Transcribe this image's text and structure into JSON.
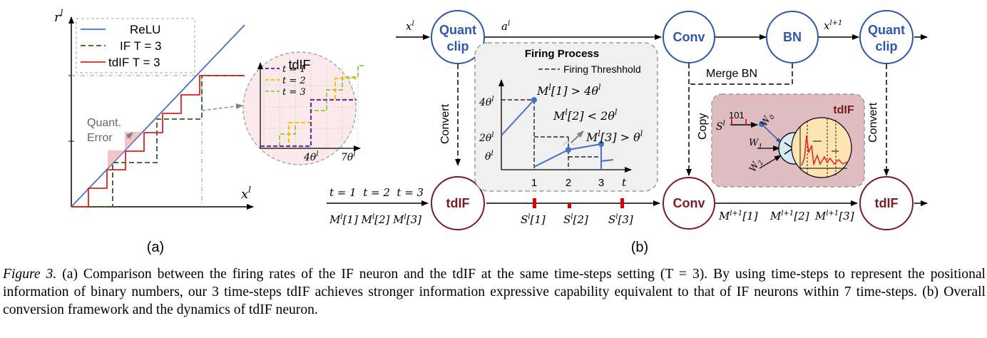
{
  "panel_a": {
    "ylabel": "r",
    "ylabel_sup": "l",
    "xlabel": "x",
    "xlabel_sup": "l",
    "legend": {
      "relu": "ReLU",
      "if": "IF T = 3",
      "tdif": "tdIF T = 3"
    },
    "quant_error": [
      "Quant.",
      "Error"
    ],
    "inset": {
      "title": "tdIF",
      "legend": [
        "t = 1",
        "t = 2",
        "t = 3"
      ],
      "xtick1": "4θ",
      "xtick1_sup": "l",
      "xtick2": "7θ",
      "xtick2_sup": "l"
    },
    "label": "(a)"
  },
  "panel_b": {
    "quant_clip_1": [
      "Quant",
      "clip"
    ],
    "quant_clip_2": [
      "Quant",
      "clip"
    ],
    "conv_top": "Conv",
    "bn": "BN",
    "x_l": "x",
    "x_l_sup": "l",
    "a_l": "a",
    "a_l_sup": "l",
    "x_l1": "x",
    "x_l1_sup": "l+1",
    "merge_bn": "Merge BN",
    "convert_left": "Convert",
    "convert_right": "Convert",
    "copy": "Copy",
    "tdif_left": "tdIF",
    "tdif_right": "tdIF",
    "conv_bottom": "Conv",
    "timesteps": "t = 1  t = 2  t = 3",
    "m_left": [
      "M",
      "l",
      "[1] ",
      "M",
      "l",
      "[2] ",
      "M",
      "l",
      "[3]"
    ],
    "spikes": [
      {
        "s": "S",
        "sup": "l",
        "idx": "[1]"
      },
      {
        "s": "S",
        "sup": "l",
        "idx": "[2]"
      },
      {
        "s": "S",
        "sup": "l",
        "idx": "[3]"
      }
    ],
    "m_right": [
      {
        "m": "M",
        "sup": "l+1",
        "idx": "[1]"
      },
      {
        "m": "M",
        "sup": "l+1",
        "idx": "[2]"
      },
      {
        "m": "M",
        "sup": "l+1",
        "idx": "[3]"
      }
    ],
    "firing": {
      "title": "Firing Process",
      "threshold_label": "Firing Threshhold",
      "y_ticks": [
        {
          "v": "4θ",
          "sup": "l"
        },
        {
          "v": "2θ",
          "sup": "l"
        },
        {
          "v": "θ",
          "sup": "l"
        }
      ],
      "x_ticks": [
        "1",
        "2",
        "3"
      ],
      "x_axis": "t",
      "ann1": {
        "m": "M",
        "sup": "l",
        "rest": "[1] > 4θ",
        "sup2": "l"
      },
      "ann2": {
        "m": "M",
        "sup": "l",
        "rest": "[2] < 2θ",
        "sup2": "l"
      },
      "ann3": {
        "m": "M",
        "sup": "l",
        "rest": "[3] > θ",
        "sup2": "l"
      }
    },
    "tdif_box": {
      "title": "tdIF",
      "s": "S",
      "s_sup": "l",
      "bits": "101",
      "w0": "W",
      "w0_sub": "0",
      "w1": "W",
      "w1_sub": "1",
      "w2": "W",
      "w2_sub": "2"
    },
    "label": "(b)"
  },
  "caption": {
    "label": "Figure 3.",
    "text": " (a) Comparison between the firing rates of the IF neuron and the tdIF at the same time-steps setting (T = 3). By using time-steps to represent the positional information of binary numbers, our 3 time-steps tdIF achieves stronger information expressive capability equivalent to that of IF neurons within 7 time-steps. (b) Overall conversion framework and the dynamics of tdIF neuron."
  },
  "colors": {
    "relu": "#4472c4",
    "if": "#2e5e1f",
    "tdif": "#e02020",
    "node_blue": "#2e57a8",
    "node_red": "#7a1c25",
    "t1": "#7030a0",
    "t2": "#ffc000",
    "t3": "#92d050"
  }
}
